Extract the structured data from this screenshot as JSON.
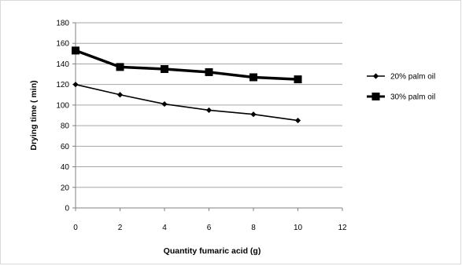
{
  "chart_data": {
    "type": "line",
    "title": "",
    "xlabel": "Quantity  fumaric acid (g)",
    "ylabel": "Drying time ( min)",
    "xlim": [
      0,
      12
    ],
    "ylim": [
      0,
      180
    ],
    "x_ticks": [
      0,
      2,
      4,
      6,
      8,
      10,
      12
    ],
    "y_ticks": [
      0,
      20,
      40,
      60,
      80,
      100,
      120,
      140,
      160,
      180
    ],
    "grid": "horizontal",
    "legend_position": "right",
    "series": [
      {
        "name": "20% palm oil",
        "marker": "diamond",
        "x": [
          0,
          2,
          4,
          6,
          8,
          10
        ],
        "values": [
          120,
          110,
          101,
          95,
          91,
          85
        ]
      },
      {
        "name": "30% palm oil",
        "marker": "square",
        "x": [
          0,
          2,
          4,
          6,
          8,
          10
        ],
        "values": [
          153,
          137,
          135,
          132,
          127,
          125
        ]
      }
    ]
  }
}
